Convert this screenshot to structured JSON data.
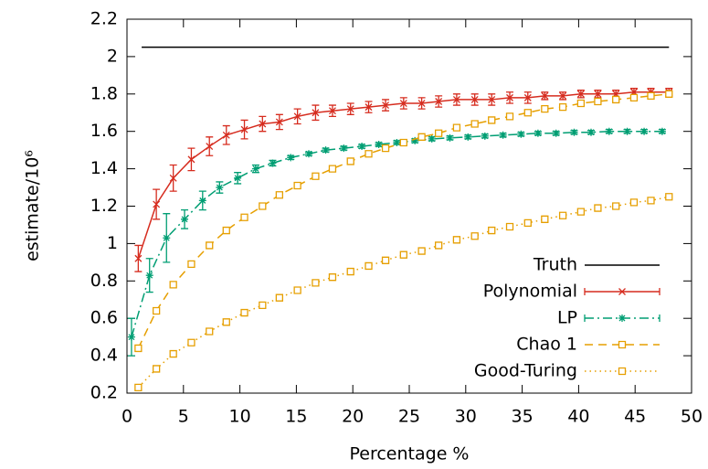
{
  "chart_data": {
    "type": "line",
    "xlabel": "Percentage %",
    "ylabel": "estimate/10⁶",
    "xlim": [
      0,
      50
    ],
    "xticks": [
      0,
      5,
      10,
      15,
      20,
      25,
      30,
      35,
      40,
      45,
      50
    ],
    "ylim": [
      0.2,
      2.2
    ],
    "yticks": [
      0.2,
      0.4,
      0.6,
      0.8,
      1,
      1.2,
      1.4,
      1.6,
      1.8,
      2,
      2.2
    ],
    "legend": "bottom right",
    "series": [
      {
        "name": "Truth",
        "color": "#000000",
        "dash": "solid",
        "marker": "none",
        "x": [
          1.3,
          48
        ],
        "values": [
          2.05,
          2.05
        ]
      },
      {
        "name": "Polynomial",
        "color": "#d62c1f",
        "dash": "solid",
        "marker": "cross",
        "x": [
          1.0,
          2.6,
          4.1,
          5.7,
          7.3,
          8.8,
          10.4,
          12.0,
          13.5,
          15.1,
          16.7,
          18.2,
          19.8,
          21.4,
          22.9,
          24.5,
          26.1,
          27.6,
          29.2,
          30.8,
          32.3,
          33.9,
          35.5,
          37.0,
          38.6,
          40.2,
          41.7,
          43.3,
          44.9,
          46.4,
          48.0
        ],
        "values": [
          0.92,
          1.21,
          1.35,
          1.45,
          1.52,
          1.58,
          1.61,
          1.64,
          1.65,
          1.68,
          1.7,
          1.71,
          1.72,
          1.73,
          1.74,
          1.75,
          1.75,
          1.76,
          1.77,
          1.77,
          1.77,
          1.78,
          1.78,
          1.79,
          1.79,
          1.8,
          1.8,
          1.8,
          1.81,
          1.81,
          1.81
        ],
        "errors": [
          0.07,
          0.08,
          0.07,
          0.06,
          0.05,
          0.05,
          0.05,
          0.04,
          0.04,
          0.04,
          0.04,
          0.03,
          0.03,
          0.03,
          0.03,
          0.03,
          0.03,
          0.03,
          0.03,
          0.03,
          0.03,
          0.03,
          0.03,
          0.02,
          0.02,
          0.02,
          0.02,
          0.02,
          0.02,
          0.02,
          0.02
        ]
      },
      {
        "name": "LP",
        "color": "#009e73",
        "dash": "dashdot",
        "marker": "star",
        "x": [
          0.4,
          2.0,
          3.5,
          5.1,
          6.7,
          8.2,
          9.8,
          11.4,
          12.9,
          14.5,
          16.1,
          17.6,
          19.2,
          20.8,
          22.3,
          23.9,
          25.5,
          27.0,
          28.6,
          30.2,
          31.7,
          33.3,
          34.9,
          36.4,
          38.0,
          39.6,
          41.1,
          42.7,
          44.3,
          45.8,
          47.4
        ],
        "values": [
          0.5,
          0.83,
          1.03,
          1.13,
          1.23,
          1.3,
          1.35,
          1.4,
          1.43,
          1.46,
          1.48,
          1.5,
          1.51,
          1.52,
          1.53,
          1.54,
          1.55,
          1.56,
          1.565,
          1.57,
          1.575,
          1.58,
          1.585,
          1.59,
          1.59,
          1.595,
          1.595,
          1.6,
          1.6,
          1.6,
          1.6
        ],
        "errors": [
          0.1,
          0.09,
          0.13,
          0.05,
          0.05,
          0.03,
          0.03,
          0.02,
          0.015,
          0.01,
          0.01,
          0.01,
          0.01,
          0.01,
          0.01,
          0.01,
          0.01,
          0.01,
          0.01,
          0.01,
          0.01,
          0.01,
          0.01,
          0.01,
          0.01,
          0.01,
          0.01,
          0.01,
          0.01,
          0.01,
          0.01
        ]
      },
      {
        "name": "Chao 1",
        "color": "#e69f00",
        "dash": "dashed",
        "marker": "square",
        "x": [
          1.0,
          2.6,
          4.1,
          5.7,
          7.3,
          8.8,
          10.4,
          12.0,
          13.5,
          15.1,
          16.7,
          18.2,
          19.8,
          21.4,
          22.9,
          24.5,
          26.1,
          27.6,
          29.2,
          30.8,
          32.3,
          33.9,
          35.5,
          37.0,
          38.6,
          40.2,
          41.7,
          43.3,
          44.9,
          46.4,
          48.0
        ],
        "values": [
          0.44,
          0.64,
          0.78,
          0.89,
          0.99,
          1.07,
          1.14,
          1.2,
          1.26,
          1.31,
          1.36,
          1.4,
          1.44,
          1.48,
          1.51,
          1.54,
          1.57,
          1.59,
          1.62,
          1.64,
          1.66,
          1.68,
          1.7,
          1.72,
          1.73,
          1.75,
          1.76,
          1.77,
          1.78,
          1.79,
          1.8
        ]
      },
      {
        "name": "Good-Turing",
        "color": "#e69f00",
        "dash": "dotted",
        "marker": "square",
        "x": [
          1.0,
          2.6,
          4.1,
          5.7,
          7.3,
          8.8,
          10.4,
          12.0,
          13.5,
          15.1,
          16.7,
          18.2,
          19.8,
          21.4,
          22.9,
          24.5,
          26.1,
          27.6,
          29.2,
          30.8,
          32.3,
          33.9,
          35.5,
          37.0,
          38.6,
          40.2,
          41.7,
          43.3,
          44.9,
          46.4,
          48.0
        ],
        "values": [
          0.23,
          0.33,
          0.41,
          0.47,
          0.53,
          0.58,
          0.63,
          0.67,
          0.71,
          0.75,
          0.79,
          0.82,
          0.85,
          0.88,
          0.91,
          0.94,
          0.96,
          0.99,
          1.02,
          1.04,
          1.07,
          1.09,
          1.11,
          1.13,
          1.15,
          1.17,
          1.19,
          1.2,
          1.22,
          1.23,
          1.25
        ]
      }
    ]
  }
}
